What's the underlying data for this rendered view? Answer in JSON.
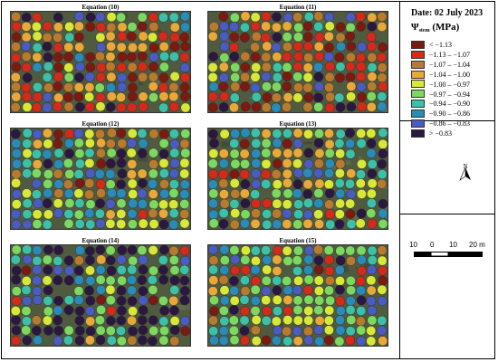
{
  "panels": [
    {
      "title": "Equation (10)",
      "mode": "red"
    },
    {
      "title": "Equation (11)",
      "mode": "red"
    },
    {
      "title": "Equation (12)",
      "mode": "mixed"
    },
    {
      "title": "Equation (13)",
      "mode": "mixed"
    },
    {
      "title": "Equation (14)",
      "mode": "dark"
    },
    {
      "title": "Equation (15)",
      "mode": "mixed"
    }
  ],
  "legend": {
    "date": "Date: 02 July 2023",
    "title_symbol": "Ψ",
    "title_sub": "stem",
    "title_unit": " (MPa)",
    "classes": [
      {
        "label": "< −1.13",
        "color": "#7a1a10"
      },
      {
        "label": "−1.13 – −1.07",
        "color": "#d42a1c"
      },
      {
        "label": "−1.07 – −1.04",
        "color": "#b87a2e"
      },
      {
        "label": "−1.04 – −1.00",
        "color": "#e8a83a"
      },
      {
        "label": "−1.00 – −0.97",
        "color": "#d8e838"
      },
      {
        "label": "−0.97 – −0.94",
        "color": "#7cd860"
      },
      {
        "label": "−0.94 – −0.90",
        "color": "#3cc0a8"
      },
      {
        "label": "−0.90 – −0.86",
        "color": "#2a8ab8"
      },
      {
        "label": "−0.86 – −0.83",
        "color": "#4a5cc0"
      },
      {
        "label": "> −0.83",
        "color": "#2a1840"
      }
    ]
  },
  "scalebar": {
    "ticks": [
      "10",
      "0",
      "10",
      "20 m"
    ]
  },
  "north_arrow": {
    "icon": "north-arrow-icon"
  }
}
